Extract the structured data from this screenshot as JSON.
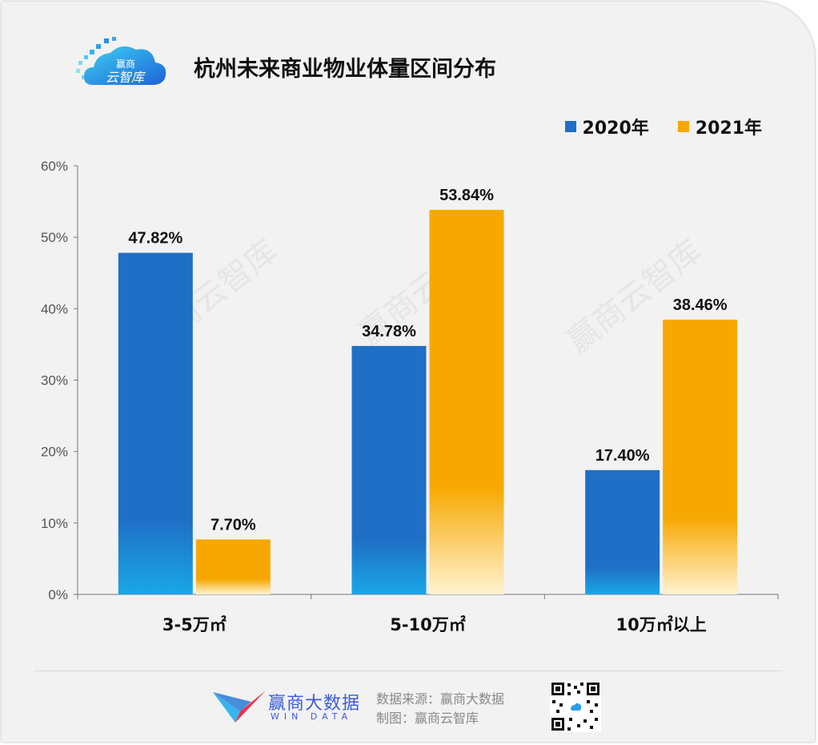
{
  "header": {
    "logo_text_line1": "赢商",
    "logo_text_line2": "云智库",
    "title": "杭州未来商业物业体量区间分布"
  },
  "watermark": "赢商云智库",
  "legend": [
    {
      "label": "2020年",
      "color": "#1f6fc6"
    },
    {
      "label": "2021年",
      "color": "#f7a800"
    }
  ],
  "chart_data": {
    "type": "bar",
    "title": "杭州未来商业物业体量区间分布",
    "categories": [
      "3-5万㎡",
      "5-10万㎡",
      "10万㎡以上"
    ],
    "series": [
      {
        "name": "2020年",
        "values": [
          47.82,
          34.78,
          17.4
        ],
        "labels": [
          "47.82%",
          "34.78%",
          "17.40%"
        ]
      },
      {
        "name": "2021年",
        "values": [
          7.7,
          53.84,
          38.46
        ],
        "labels": [
          "7.70%",
          "53.84%",
          "38.46%"
        ]
      }
    ],
    "ylim": [
      0,
      60
    ],
    "yticks": [
      "0%",
      "10%",
      "20%",
      "30%",
      "40%",
      "50%",
      "60%"
    ],
    "xlabel": "",
    "ylabel": ""
  },
  "footer": {
    "brand_cn": "赢商大数据",
    "brand_en": "WIN DATA",
    "source_line": "数据来源：赢商大数据",
    "maker_line": "制图：赢商云智库"
  }
}
